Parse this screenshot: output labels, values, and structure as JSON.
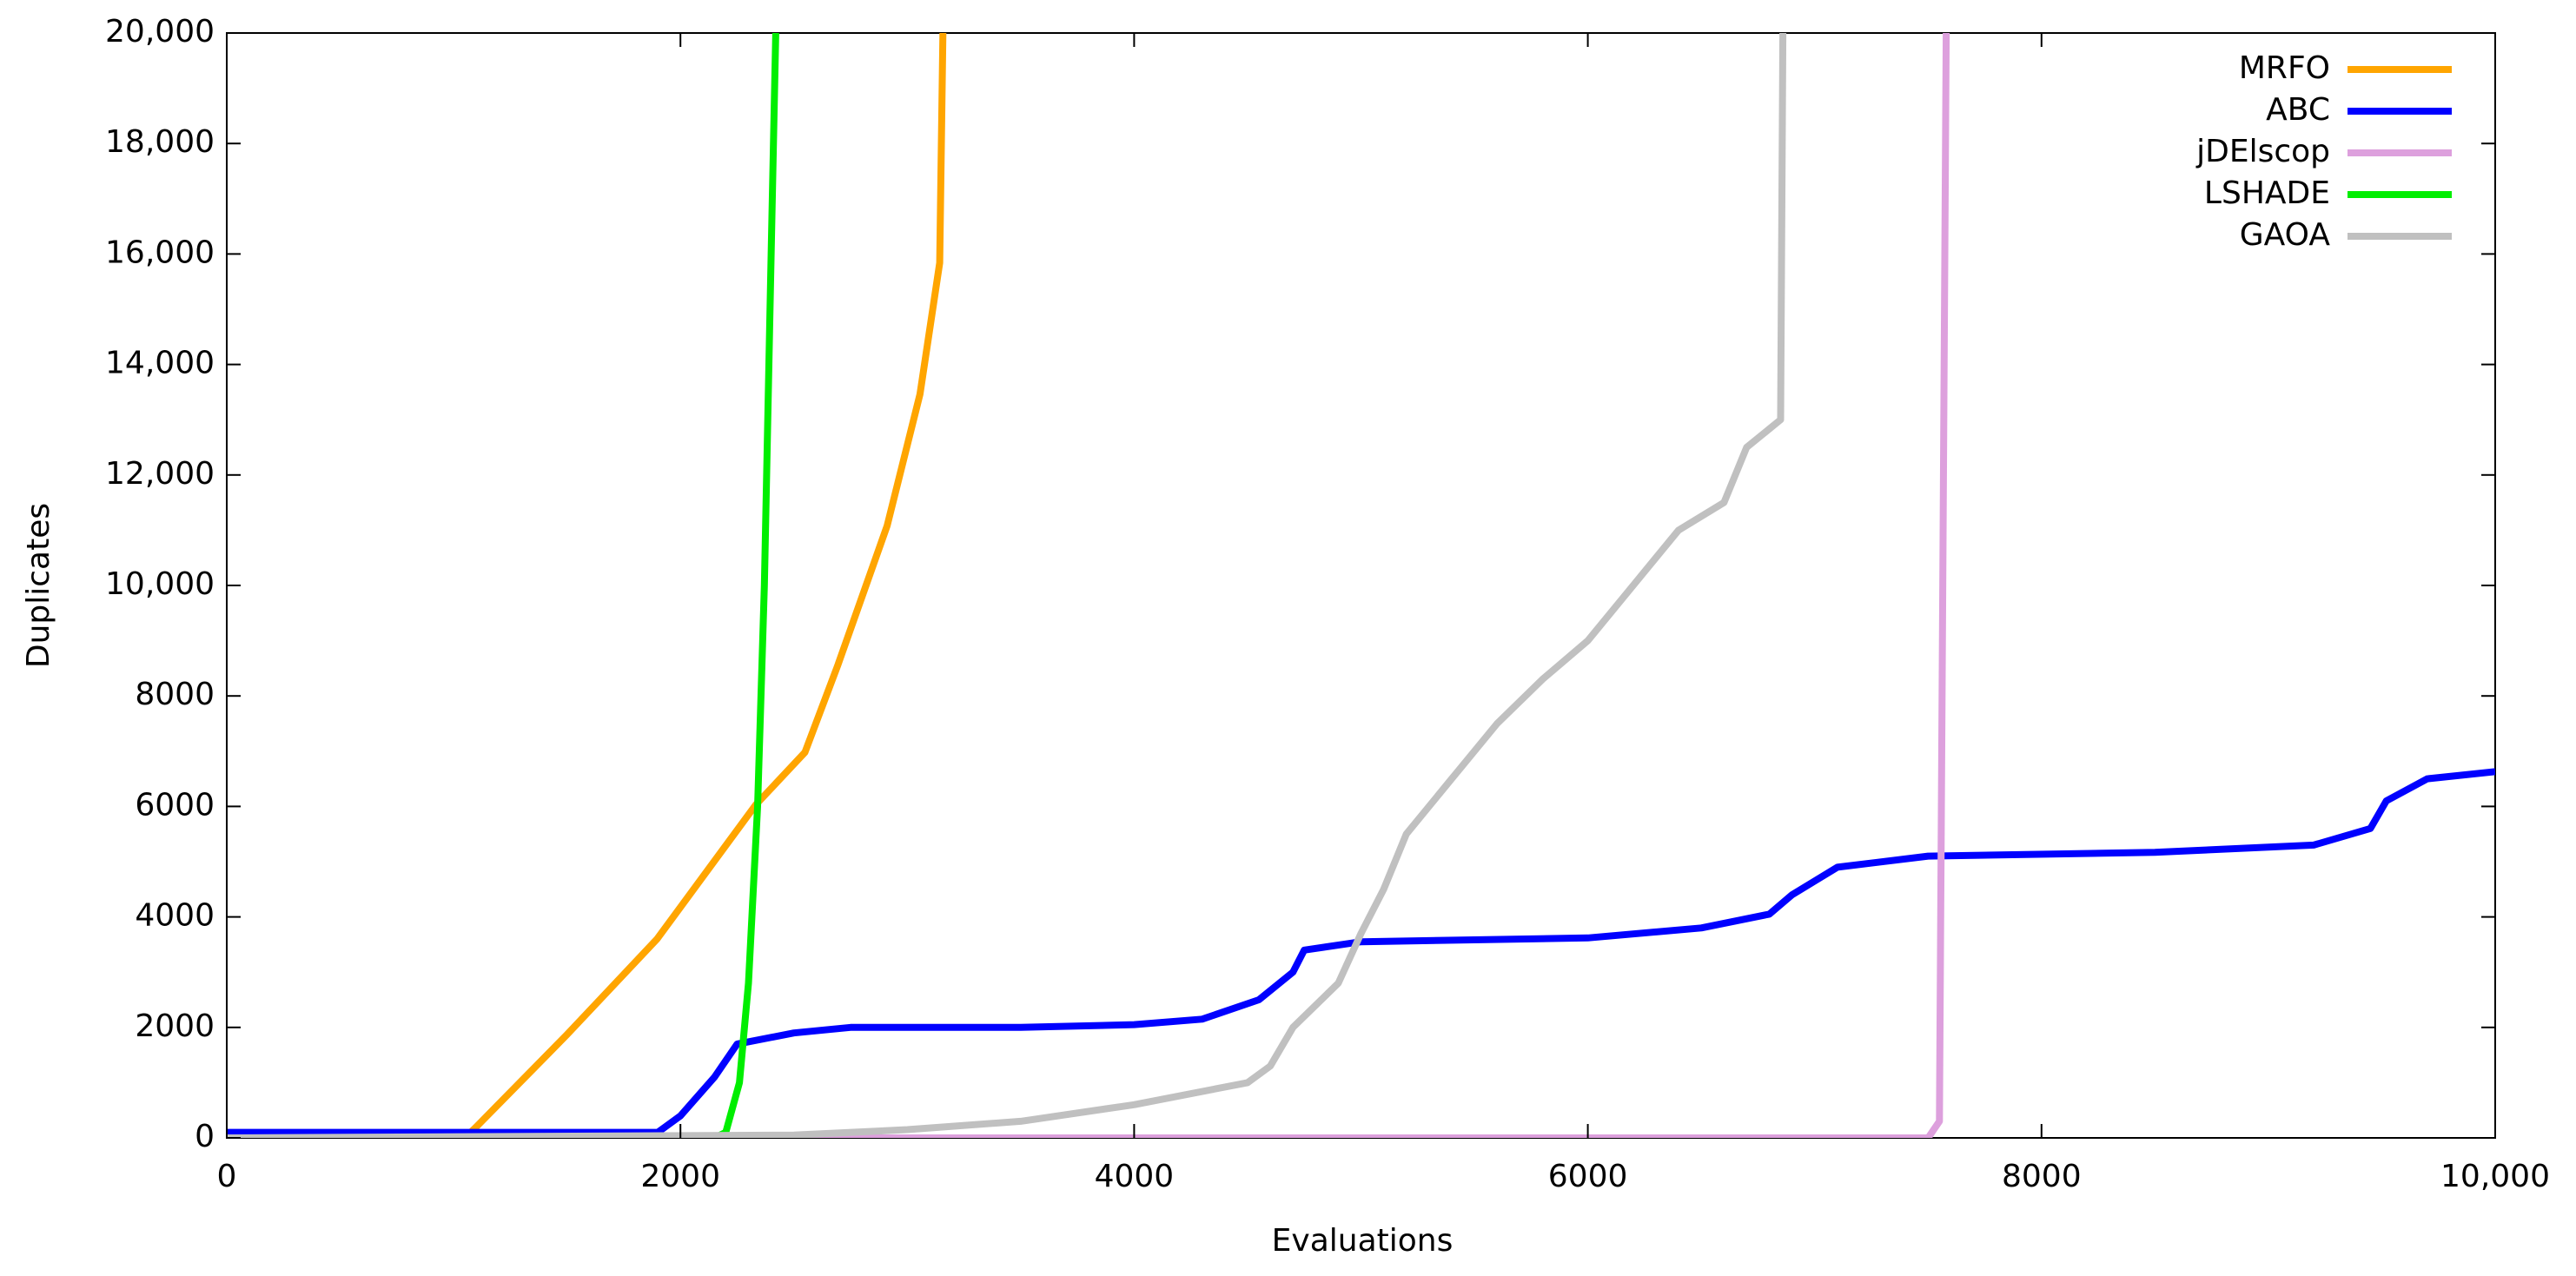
{
  "chart_data": {
    "type": "line",
    "xlabel": "Evaluations",
    "ylabel": "Duplicates",
    "xlim": [
      0,
      10000
    ],
    "ylim": [
      0,
      20000
    ],
    "xticks": [
      0,
      2000,
      4000,
      6000,
      8000,
      {
        "value": 10000,
        "label": "10,000"
      }
    ],
    "yticks": [
      0,
      2000,
      4000,
      6000,
      8000,
      {
        "value": 10000,
        "label": "10,000"
      },
      {
        "value": 12000,
        "label": "12,000"
      },
      {
        "value": 14000,
        "label": "14,000"
      },
      {
        "value": 16000,
        "label": "16,000"
      },
      {
        "value": 18000,
        "label": "18,000"
      },
      {
        "value": 20000,
        "label": "20,000"
      }
    ],
    "legend": "top-right",
    "series": [
      {
        "name": "MRFO",
        "color": "#ffa500",
        "x": [
          0,
          1050,
          1100,
          1500,
          1897,
          2332,
          2549,
          2694,
          2911,
          3056,
          3143,
          3157
        ],
        "values": [
          0,
          0,
          200,
          1870,
          3600,
          6030,
          6980,
          8560,
          11080,
          13460,
          15840,
          20000
        ]
      },
      {
        "name": "ABC",
        "color": "#0000ff",
        "x": [
          0,
          1900,
          2000,
          2150,
          2250,
          2500,
          2750,
          3500,
          4000,
          4300,
          4550,
          4700,
          4750,
          5000,
          6000,
          6500,
          6800,
          6900,
          7100,
          7500,
          8500,
          9200,
          9450,
          9520,
          9700,
          10000
        ],
        "values": [
          100,
          100,
          400,
          1100,
          1700,
          1900,
          2000,
          2000,
          2050,
          2150,
          2500,
          3000,
          3400,
          3550,
          3620,
          3800,
          4050,
          4400,
          4900,
          5100,
          5170,
          5300,
          5600,
          6100,
          6500,
          6630
        ]
      },
      {
        "name": "jDElscop",
        "color": "#dda0dd",
        "x": [
          0,
          7500,
          7550,
          7580
        ],
        "values": [
          0,
          0,
          300,
          20000
        ]
      },
      {
        "name": "LSHADE",
        "color": "#00ee00",
        "x": [
          0,
          2150,
          2200,
          2260,
          2300,
          2340,
          2370,
          2400,
          2420
        ],
        "values": [
          0,
          0,
          100,
          1000,
          2800,
          6000,
          10000,
          16000,
          20000
        ]
      },
      {
        "name": "GAOA",
        "color": "#c0c0c0",
        "x": [
          0,
          2500,
          3000,
          3500,
          4000,
          4500,
          4600,
          4700,
          4900,
          5000,
          5100,
          5200,
          5400,
          5600,
          5800,
          6000,
          6200,
          6400,
          6600,
          6700,
          6850,
          6860
        ],
        "values": [
          0,
          50,
          150,
          300,
          600,
          1000,
          1300,
          2000,
          2800,
          3700,
          4500,
          5500,
          6500,
          7500,
          8300,
          9000,
          10000,
          11000,
          11500,
          12500,
          13000,
          20000
        ]
      }
    ]
  }
}
